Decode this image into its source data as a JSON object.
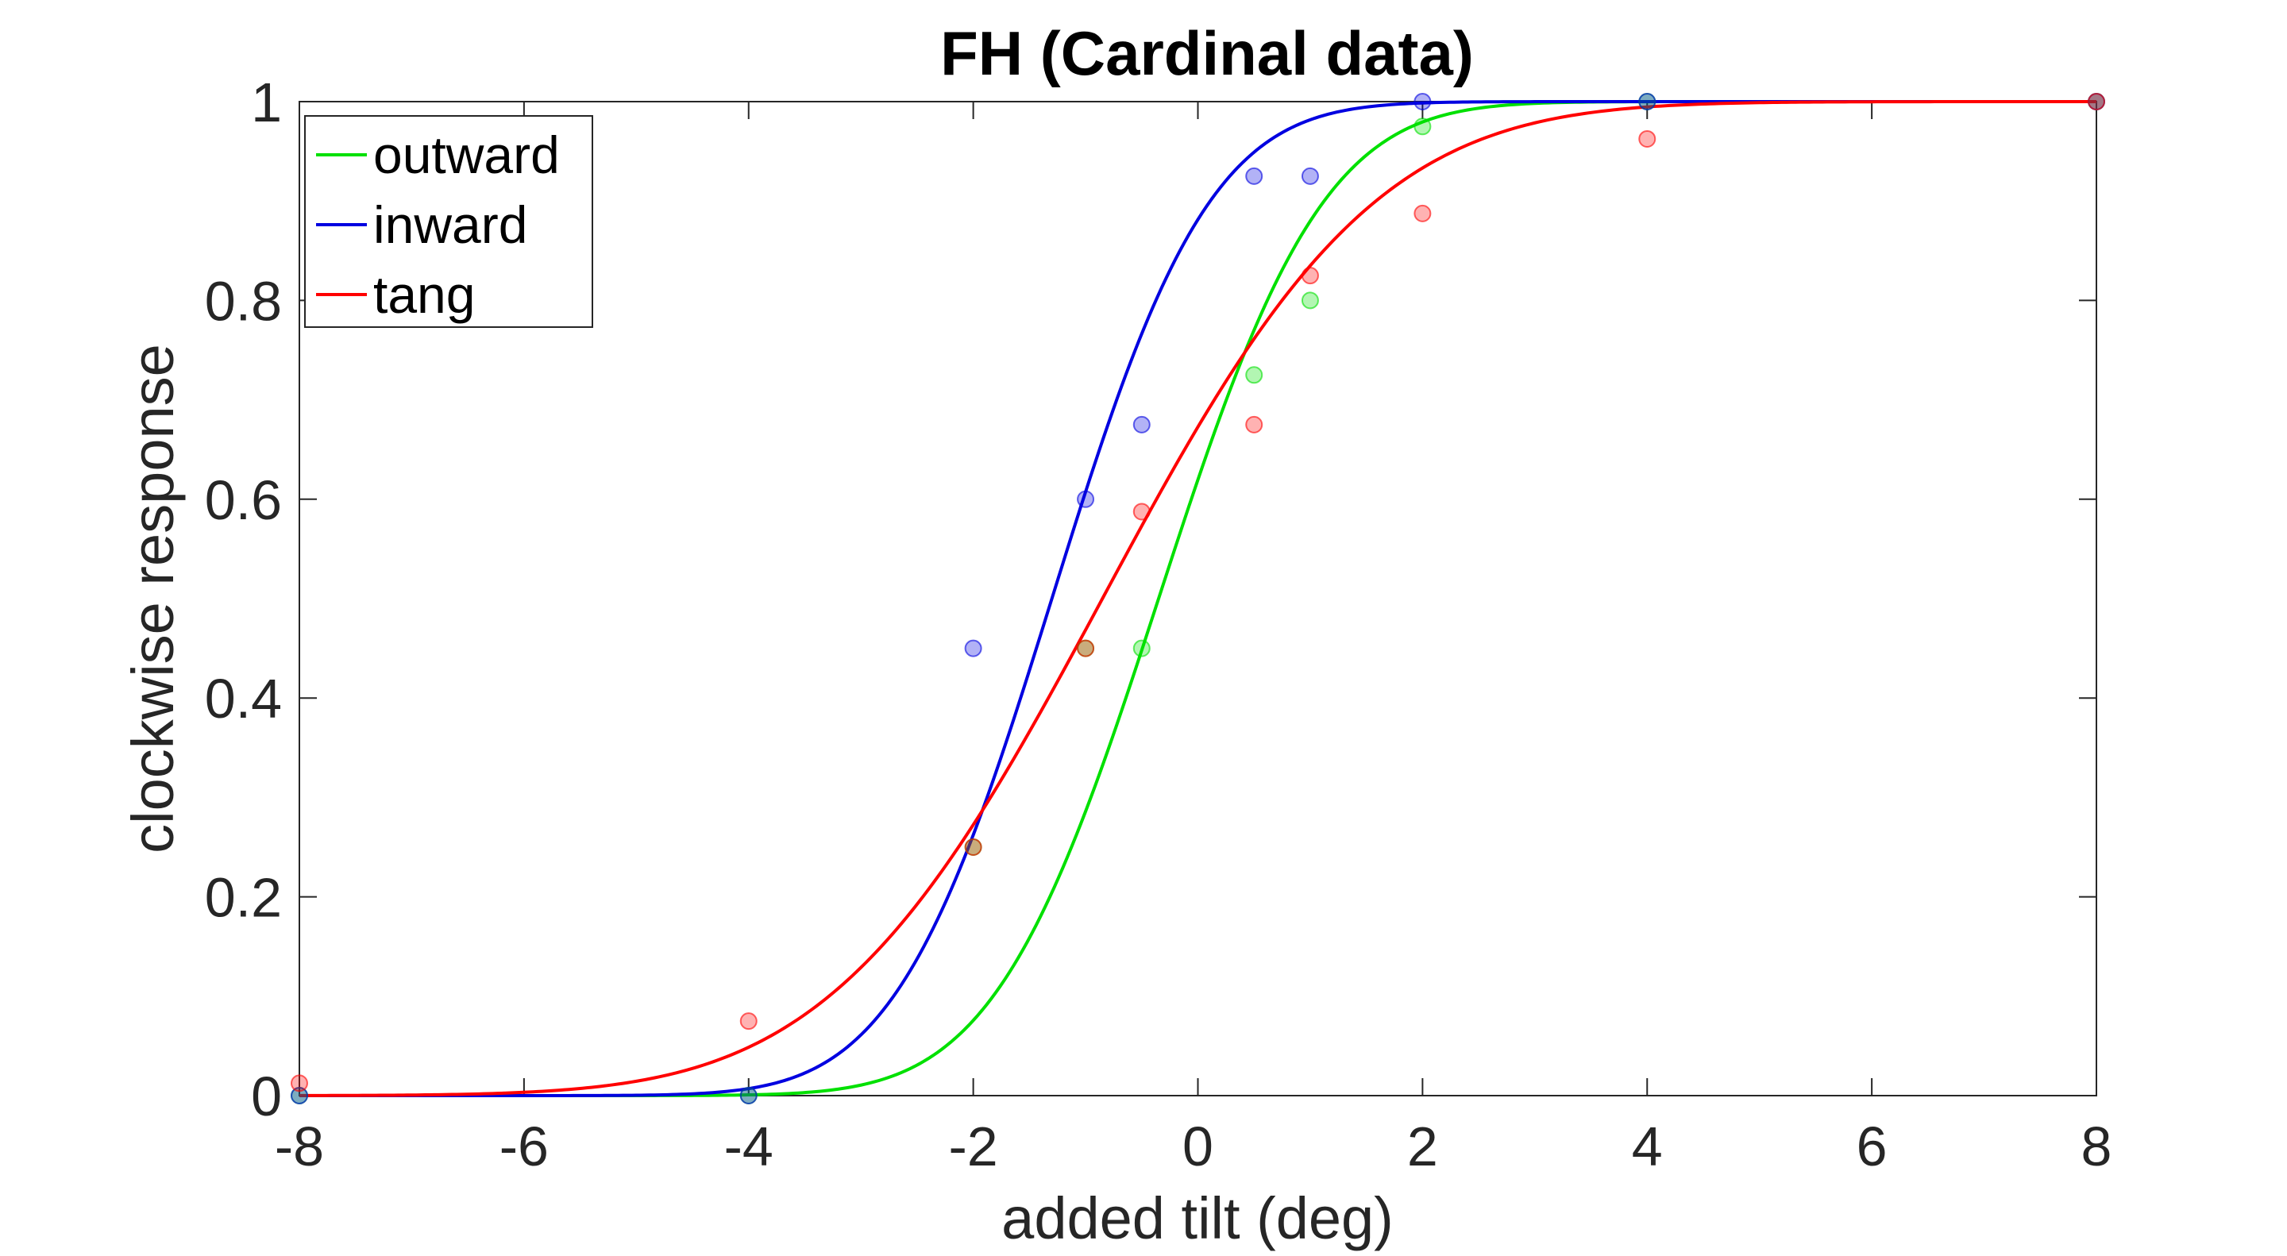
{
  "chart_data": {
    "type": "scatter",
    "title": "FH (Cardinal data)",
    "xlabel": "added tilt (deg)",
    "ylabel": "clockwise response",
    "xlim": [
      -8,
      8
    ],
    "ylim": [
      0,
      1
    ],
    "xticks": [
      -8,
      -6,
      -4,
      -2,
      0,
      2,
      4,
      6,
      8
    ],
    "yticks": [
      0,
      0.2,
      0.4,
      0.6,
      0.8,
      1
    ],
    "xtick_labels": [
      "-8",
      "-6",
      "-4",
      "-2",
      "0",
      "2",
      "4",
      "6",
      "8"
    ],
    "ytick_labels": [
      "0",
      "0.2",
      "0.4",
      "0.6",
      "0.8",
      "1"
    ],
    "grid": false,
    "legend_position": "top-left",
    "series": [
      {
        "name": "outward",
        "color": "#00e000",
        "points": [
          [
            -8,
            0
          ],
          [
            -4,
            0
          ],
          [
            -2,
            0.25
          ],
          [
            -1,
            0.45
          ],
          [
            -0.5,
            0.45
          ],
          [
            0.5,
            0.725
          ],
          [
            1,
            0.8
          ],
          [
            2,
            0.975
          ],
          [
            4,
            1
          ],
          [
            8,
            1
          ]
        ],
        "fit": {
          "mu": -0.35,
          "sigma": 1.15
        }
      },
      {
        "name": "inward",
        "color": "#0000e0",
        "points": [
          [
            -8,
            0
          ],
          [
            -4,
            0
          ],
          [
            -2,
            0.45
          ],
          [
            -1,
            0.6
          ],
          [
            -0.5,
            0.675
          ],
          [
            0.5,
            0.925
          ],
          [
            1,
            0.925
          ],
          [
            2,
            1
          ],
          [
            4,
            1
          ],
          [
            8,
            1
          ]
        ],
        "fit": {
          "mu": -1.3,
          "sigma": 1.1
        }
      },
      {
        "name": "tang",
        "color": "#ff0000",
        "points": [
          [
            -8,
            0.0125
          ],
          [
            -4,
            0.075
          ],
          [
            -2,
            0.25
          ],
          [
            -1,
            0.45
          ],
          [
            -0.5,
            0.5875
          ],
          [
            0.5,
            0.675
          ],
          [
            1,
            0.825
          ],
          [
            2,
            0.8875
          ],
          [
            4,
            0.9625
          ],
          [
            8,
            1
          ]
        ],
        "fit": {
          "mu": -0.85,
          "sigma": 1.9
        }
      }
    ]
  }
}
